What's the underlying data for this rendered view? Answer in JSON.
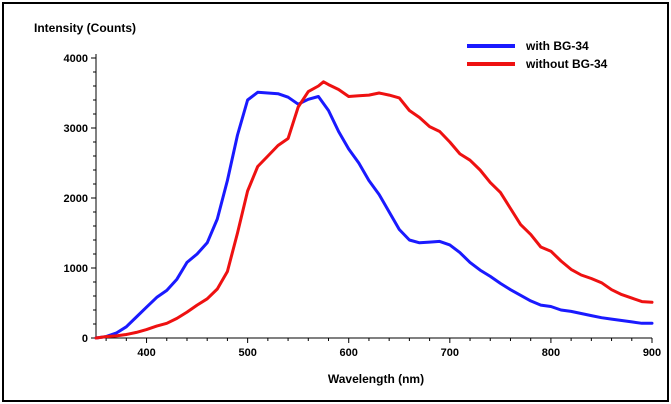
{
  "chart_data": {
    "type": "line",
    "title": "",
    "xlabel": "Wavelength (nm)",
    "ylabel": "Intensity (Counts)",
    "xlim": [
      350,
      900
    ],
    "ylim": [
      0,
      4000
    ],
    "x_ticks": [
      400,
      500,
      600,
      700,
      800,
      900
    ],
    "y_ticks": [
      0,
      1000,
      2000,
      3000,
      4000
    ],
    "grid": false,
    "legend_position": "top-right",
    "series": [
      {
        "name": "with BG-34",
        "color": "#1a1aff",
        "points": [
          [
            350,
            0
          ],
          [
            360,
            20
          ],
          [
            370,
            70
          ],
          [
            380,
            160
          ],
          [
            390,
            300
          ],
          [
            400,
            440
          ],
          [
            410,
            580
          ],
          [
            420,
            680
          ],
          [
            430,
            840
          ],
          [
            440,
            1080
          ],
          [
            450,
            1200
          ],
          [
            460,
            1360
          ],
          [
            470,
            1700
          ],
          [
            480,
            2250
          ],
          [
            490,
            2900
          ],
          [
            500,
            3400
          ],
          [
            510,
            3510
          ],
          [
            520,
            3500
          ],
          [
            530,
            3490
          ],
          [
            540,
            3440
          ],
          [
            550,
            3340
          ],
          [
            560,
            3410
          ],
          [
            570,
            3450
          ],
          [
            580,
            3250
          ],
          [
            590,
            2950
          ],
          [
            600,
            2700
          ],
          [
            610,
            2500
          ],
          [
            620,
            2250
          ],
          [
            630,
            2050
          ],
          [
            640,
            1800
          ],
          [
            650,
            1550
          ],
          [
            660,
            1400
          ],
          [
            670,
            1360
          ],
          [
            680,
            1370
          ],
          [
            690,
            1380
          ],
          [
            700,
            1330
          ],
          [
            710,
            1220
          ],
          [
            720,
            1080
          ],
          [
            730,
            970
          ],
          [
            740,
            880
          ],
          [
            750,
            780
          ],
          [
            760,
            690
          ],
          [
            770,
            610
          ],
          [
            780,
            530
          ],
          [
            790,
            470
          ],
          [
            800,
            450
          ],
          [
            810,
            400
          ],
          [
            820,
            380
          ],
          [
            830,
            350
          ],
          [
            840,
            320
          ],
          [
            850,
            290
          ],
          [
            860,
            270
          ],
          [
            870,
            250
          ],
          [
            880,
            230
          ],
          [
            890,
            210
          ],
          [
            900,
            210
          ]
        ]
      },
      {
        "name": "without BG-34",
        "color": "#ee1111",
        "points": [
          [
            350,
            0
          ],
          [
            360,
            20
          ],
          [
            370,
            30
          ],
          [
            380,
            50
          ],
          [
            390,
            80
          ],
          [
            400,
            120
          ],
          [
            410,
            170
          ],
          [
            420,
            210
          ],
          [
            430,
            280
          ],
          [
            440,
            370
          ],
          [
            450,
            470
          ],
          [
            460,
            560
          ],
          [
            470,
            700
          ],
          [
            480,
            950
          ],
          [
            490,
            1500
          ],
          [
            500,
            2100
          ],
          [
            510,
            2450
          ],
          [
            520,
            2600
          ],
          [
            530,
            2750
          ],
          [
            540,
            2850
          ],
          [
            550,
            3300
          ],
          [
            560,
            3520
          ],
          [
            570,
            3600
          ],
          [
            575,
            3660
          ],
          [
            580,
            3620
          ],
          [
            590,
            3550
          ],
          [
            600,
            3450
          ],
          [
            610,
            3460
          ],
          [
            620,
            3470
          ],
          [
            630,
            3500
          ],
          [
            640,
            3470
          ],
          [
            650,
            3430
          ],
          [
            660,
            3250
          ],
          [
            670,
            3150
          ],
          [
            680,
            3020
          ],
          [
            690,
            2950
          ],
          [
            700,
            2800
          ],
          [
            710,
            2630
          ],
          [
            720,
            2540
          ],
          [
            730,
            2400
          ],
          [
            740,
            2220
          ],
          [
            750,
            2080
          ],
          [
            760,
            1850
          ],
          [
            770,
            1620
          ],
          [
            780,
            1480
          ],
          [
            790,
            1300
          ],
          [
            800,
            1240
          ],
          [
            810,
            1100
          ],
          [
            820,
            980
          ],
          [
            830,
            900
          ],
          [
            840,
            850
          ],
          [
            850,
            790
          ],
          [
            860,
            690
          ],
          [
            870,
            620
          ],
          [
            880,
            570
          ],
          [
            890,
            520
          ],
          [
            900,
            510
          ]
        ]
      }
    ]
  }
}
